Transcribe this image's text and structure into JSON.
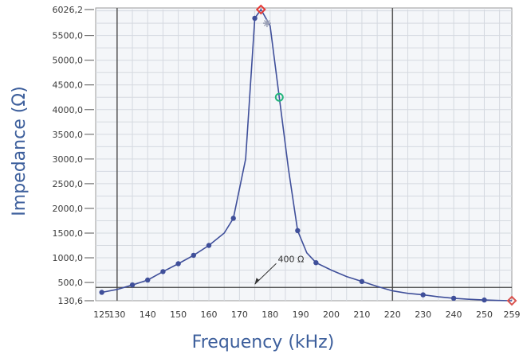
{
  "chart_data": {
    "type": "line",
    "title": "",
    "xlabel": "Frequency (kHz)",
    "ylabel": "Impedance (Ω)",
    "xlim": [
      123,
      259
    ],
    "ylim": [
      130.6,
      6026.2
    ],
    "x_ticks": [
      125,
      130,
      140,
      150,
      160,
      170,
      180,
      190,
      200,
      210,
      220,
      230,
      240,
      250,
      259
    ],
    "x_tick_labels": [
      "125",
      "130",
      "140",
      "150",
      "160",
      "170",
      "180",
      "190",
      "200",
      "210",
      "220",
      "230",
      "240",
      "250",
      "259"
    ],
    "y_ticks": [
      130.6,
      500,
      1000,
      1500,
      2000,
      2500,
      3000,
      3500,
      4000,
      4500,
      5000,
      5500,
      6026.2
    ],
    "y_tick_labels": [
      "130,6",
      "500,0",
      "1000,0",
      "1500,0",
      "2000,0",
      "2500,0",
      "3000,0",
      "3500,0",
      "4000,0",
      "4500,0",
      "5000,0",
      "5500,0",
      "6026,2"
    ],
    "grid": true,
    "major_x_lines": [
      130,
      220
    ],
    "line_color": "#3f4f9a",
    "series": [
      {
        "name": "",
        "x": [
          125,
          130,
          135,
          140,
          145,
          150,
          155,
          160,
          165,
          168,
          172,
          175,
          177,
          178,
          180,
          183,
          186,
          189,
          192,
          195,
          200,
          205,
          210,
          215,
          220,
          225,
          230,
          235,
          240,
          245,
          250,
          255,
          259
        ],
        "y": [
          300,
          360,
          450,
          550,
          720,
          880,
          1050,
          1250,
          1500,
          1800,
          3000,
          5850,
          6026.2,
          5920,
          5700,
          4250,
          2800,
          1550,
          1100,
          900,
          750,
          620,
          520,
          420,
          330,
          280,
          250,
          210,
          180,
          160,
          145,
          135,
          130.6
        ],
        "markers": [
          [
            125,
            300
          ],
          [
            135,
            450
          ],
          [
            140,
            550
          ],
          [
            145,
            720
          ],
          [
            150,
            880
          ],
          [
            155,
            1050
          ],
          [
            160,
            1250
          ],
          [
            168,
            1800
          ],
          [
            175,
            5850
          ],
          [
            189,
            1550
          ],
          [
            195,
            900
          ],
          [
            210,
            520
          ],
          [
            230,
            250
          ],
          [
            240,
            180
          ],
          [
            250,
            145
          ]
        ]
      }
    ],
    "special_markers": [
      {
        "x": 177,
        "y": 6026.2,
        "color": "#e53935",
        "shape": "diamond"
      },
      {
        "x": 179,
        "y": 5750,
        "color": "#9aa0b5",
        "shape": "star"
      },
      {
        "x": 183,
        "y": 4250,
        "color": "#20b47a",
        "shape": "circle"
      },
      {
        "x": 259,
        "y": 130.6,
        "color": "#d9534f",
        "shape": "diamond"
      }
    ],
    "reference_line": {
      "y": 400,
      "label": "400 Ω"
    }
  }
}
